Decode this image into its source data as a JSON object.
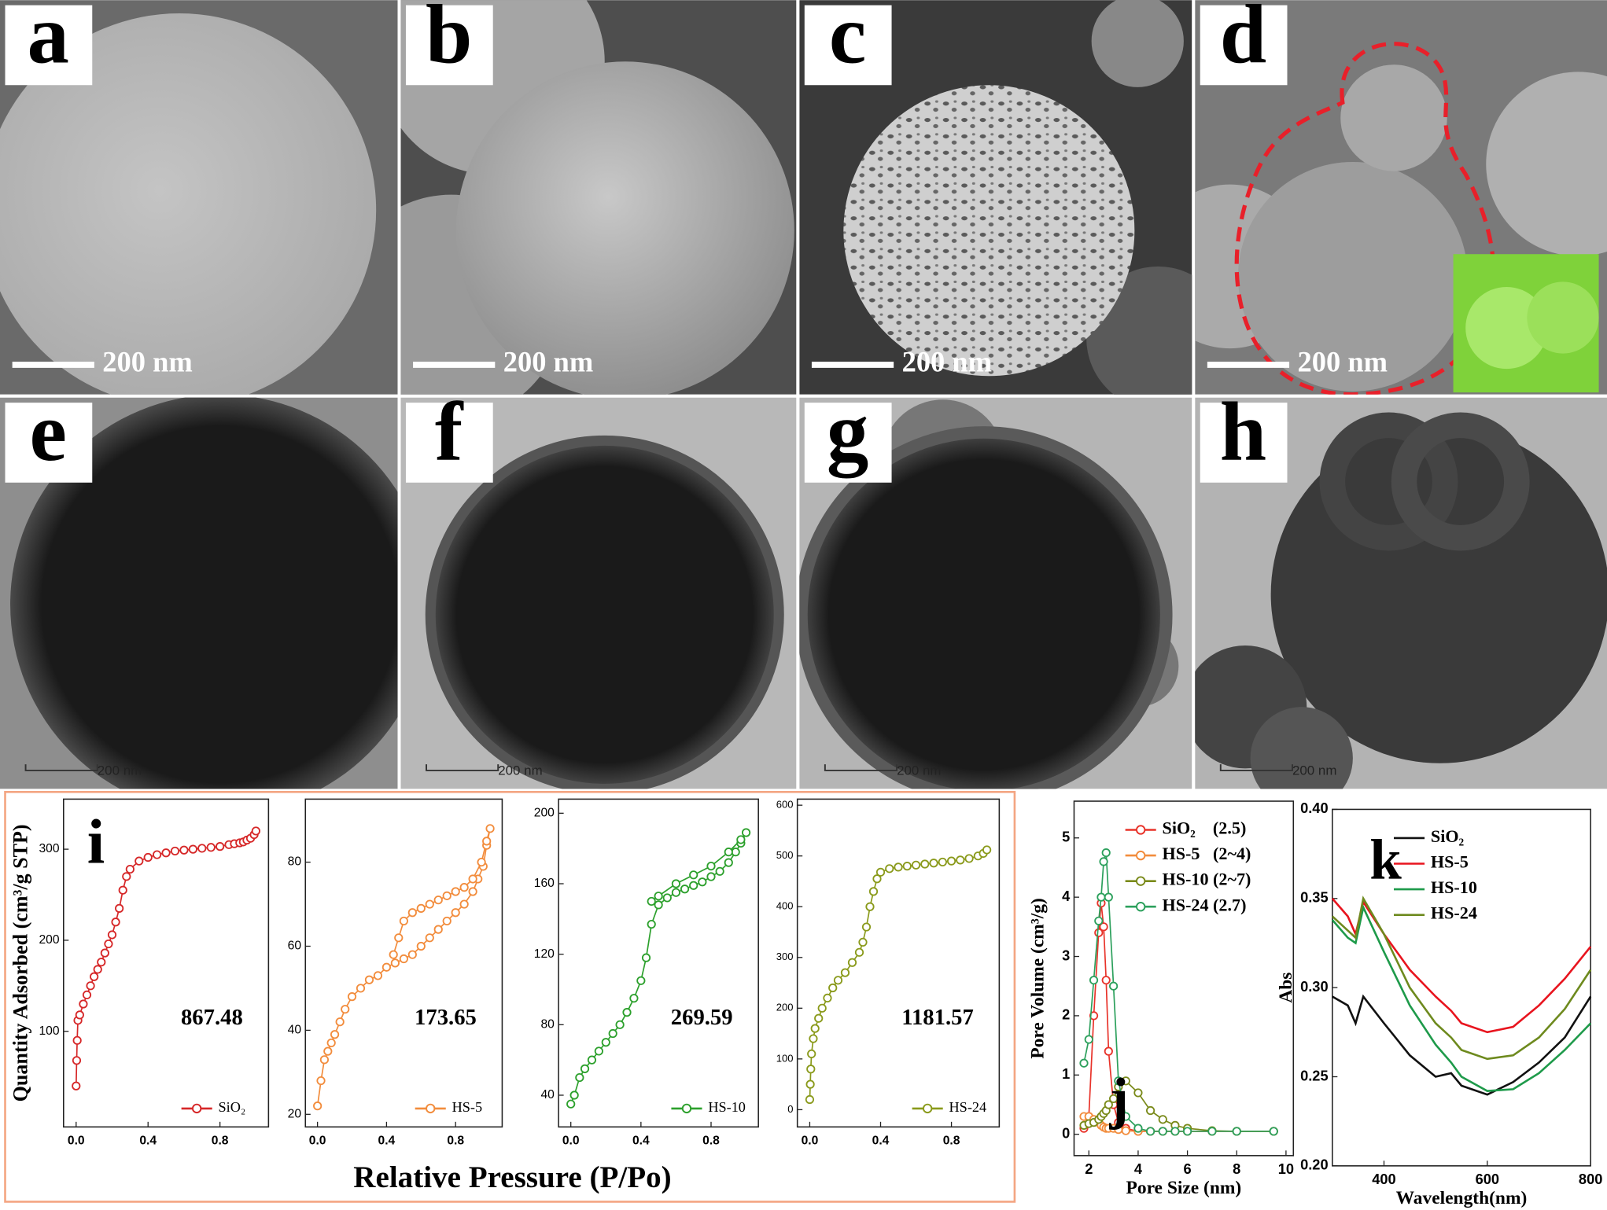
{
  "micrographs": [
    {
      "label": "a",
      "scale_bar": "200 nm"
    },
    {
      "label": "b",
      "scale_bar": "200 nm"
    },
    {
      "label": "c",
      "scale_bar": "200 nm"
    },
    {
      "label": "d",
      "scale_bar": "200 nm"
    },
    {
      "label": "e",
      "scale_bar": "200 nm"
    },
    {
      "label": "f",
      "scale_bar": "200 nm"
    },
    {
      "label": "g",
      "scale_bar": "200 nm"
    },
    {
      "label": "h",
      "scale_bar": "200 nm"
    }
  ],
  "panel_i": {
    "label": "i",
    "xlabel": "Relative Pressure (P/Po)",
    "ylabel": "Quantity Adsorbed (cm³/g STP)"
  },
  "chart_data": [
    {
      "type": "line",
      "markers": true,
      "legend": "lower right",
      "annotation": "867.48",
      "xlim": [
        -0.07,
        1.07
      ],
      "ylim": [
        -5,
        355
      ],
      "xticks": [
        {
          "value": 0,
          "label": "0.0"
        },
        {
          "value": 0.4,
          "label": "0.4"
        },
        {
          "value": 0.8,
          "label": "0.8"
        }
      ],
      "yticks": [
        100,
        200,
        300
      ],
      "x": [
        0,
        0.003,
        0.006,
        0.01,
        0.02,
        0.04,
        0.06,
        0.08,
        0.1,
        0.12,
        0.14,
        0.16,
        0.18,
        0.2,
        0.22,
        0.24,
        0.26,
        0.28,
        0.3,
        0.35,
        0.4,
        0.45,
        0.5,
        0.55,
        0.6,
        0.65,
        0.7,
        0.75,
        0.8,
        0.85,
        0.88,
        0.91,
        0.93,
        0.95,
        0.97,
        0.99,
        1.0
      ],
      "series": [
        {
          "name": "SiO₂",
          "color": "#d62728",
          "values": [
            40,
            68,
            90,
            112,
            118,
            130,
            140,
            150,
            160,
            168,
            176,
            186,
            196,
            206,
            220,
            235,
            255,
            270,
            278,
            287,
            291,
            294,
            296,
            298,
            299,
            300,
            301,
            302,
            303,
            305,
            306,
            307,
            308,
            310,
            312,
            316,
            320
          ]
        }
      ]
    },
    {
      "type": "line",
      "markers": true,
      "legend": "lower right",
      "annotation": "173.65",
      "xlim": [
        -0.07,
        1.07
      ],
      "ylim": [
        17,
        95
      ],
      "xticks": [
        {
          "value": 0,
          "label": "0.0"
        },
        {
          "value": 0.4,
          "label": "0.4"
        },
        {
          "value": 0.8,
          "label": "0.8"
        }
      ],
      "yticks": [
        20,
        40,
        60,
        80
      ],
      "x": [
        0,
        0.02,
        0.04,
        0.06,
        0.08,
        0.1,
        0.13,
        0.16,
        0.2,
        0.25,
        0.3,
        0.35,
        0.4,
        0.45,
        0.5,
        0.55,
        0.6,
        0.65,
        0.7,
        0.75,
        0.8,
        0.85,
        0.9,
        0.93,
        0.96,
        0.98,
        1.0,
        0.98,
        0.95,
        0.9,
        0.85,
        0.8,
        0.75,
        0.7,
        0.65,
        0.6,
        0.55,
        0.5,
        0.47,
        0.44
      ],
      "series": [
        {
          "name": "HS-5",
          "color": "#f28c3c",
          "values": [
            22,
            28,
            33,
            35,
            37,
            39,
            42,
            45,
            48,
            50,
            52,
            53,
            55,
            56,
            57,
            58,
            60,
            62,
            64,
            66,
            68,
            70,
            73,
            76,
            79,
            84,
            88,
            85,
            80,
            76,
            74,
            73,
            72,
            71,
            70,
            69,
            68,
            66,
            62,
            58
          ]
        }
      ]
    },
    {
      "type": "line",
      "markers": true,
      "legend": "lower right",
      "annotation": "269.59",
      "xlim": [
        -0.07,
        1.07
      ],
      "ylim": [
        22,
        208
      ],
      "xticks": [
        {
          "value": 0,
          "label": "0.0"
        },
        {
          "value": 0.4,
          "label": "0.4"
        },
        {
          "value": 0.8,
          "label": "0.8"
        }
      ],
      "yticks": [
        40,
        80,
        120,
        160,
        200
      ],
      "x": [
        0,
        0.02,
        0.05,
        0.08,
        0.12,
        0.16,
        0.2,
        0.24,
        0.28,
        0.32,
        0.36,
        0.4,
        0.43,
        0.46,
        0.5,
        0.55,
        0.6,
        0.65,
        0.7,
        0.75,
        0.8,
        0.85,
        0.9,
        0.94,
        0.97,
        1.0,
        0.97,
        0.9,
        0.8,
        0.7,
        0.6,
        0.5,
        0.46
      ],
      "series": [
        {
          "name": "HS-10",
          "color": "#2ca02c",
          "values": [
            35,
            40,
            50,
            55,
            60,
            65,
            70,
            75,
            80,
            87,
            95,
            105,
            118,
            137,
            148,
            152,
            155,
            157,
            159,
            161,
            164,
            167,
            172,
            178,
            183,
            189,
            185,
            178,
            170,
            165,
            160,
            153,
            150
          ]
        }
      ]
    },
    {
      "type": "line",
      "markers": true,
      "legend": "lower right",
      "annotation": "1181.57",
      "xlim": [
        -0.07,
        1.07
      ],
      "ylim": [
        -34,
        612
      ],
      "xticks": [
        {
          "value": 0,
          "label": "0.0"
        },
        {
          "value": 0.4,
          "label": "0.4"
        },
        {
          "value": 0.8,
          "label": "0.8"
        }
      ],
      "yticks": [
        0,
        100,
        200,
        300,
        400,
        500,
        600
      ],
      "x": [
        0,
        0.003,
        0.006,
        0.01,
        0.02,
        0.03,
        0.05,
        0.07,
        0.1,
        0.13,
        0.16,
        0.2,
        0.24,
        0.28,
        0.3,
        0.32,
        0.34,
        0.36,
        0.38,
        0.4,
        0.45,
        0.5,
        0.55,
        0.6,
        0.65,
        0.7,
        0.75,
        0.8,
        0.85,
        0.9,
        0.95,
        0.98,
        1.0
      ],
      "series": [
        {
          "name": "HS-24",
          "color": "#8a9a1b",
          "values": [
            20,
            50,
            80,
            110,
            140,
            160,
            180,
            200,
            220,
            240,
            255,
            270,
            290,
            310,
            330,
            360,
            400,
            430,
            455,
            468,
            475,
            478,
            480,
            482,
            484,
            486,
            488,
            490,
            492,
            495,
            500,
            505,
            512
          ]
        }
      ]
    },
    {
      "type": "line",
      "markers": true,
      "legend": "upper right",
      "label": "j",
      "xlabel": "Pore Size (nm)",
      "ylabel": "Pore Volume (cm³/g)",
      "xlim": [
        1.4,
        10.3
      ],
      "ylim": [
        -0.36,
        5.62
      ],
      "xticks": [
        2,
        4,
        6,
        8,
        10
      ],
      "yticks": [
        0,
        1,
        2,
        3,
        4,
        5
      ],
      "x": [
        1.8,
        2.0,
        2.2,
        2.4,
        2.5,
        2.6,
        2.7,
        2.8,
        3.0,
        3.2,
        3.5,
        4.0,
        4.5,
        5.0,
        5.5,
        6.0,
        7.0,
        8.0,
        9.5
      ],
      "series": [
        {
          "name": "SiO₂    (2.5)",
          "color": "#e8332a",
          "values": [
            0.1,
            0.3,
            2.0,
            3.4,
            3.9,
            3.5,
            2.6,
            1.4,
            0.5,
            0.2,
            0.1,
            0.05,
            0.05,
            0.05,
            0.05,
            0.05,
            0.05,
            0.05,
            0.05
          ]
        },
        {
          "name": "HS-5   (2~4)",
          "color": "#f28c3c",
          "values": [
            0.3,
            0.3,
            0.25,
            0.2,
            0.15,
            0.12,
            0.1,
            0.1,
            0.1,
            0.08,
            0.06,
            0.05,
            0.05,
            0.05,
            0.05,
            0.05,
            0.05,
            0.05,
            0.05
          ]
        },
        {
          "name": "HS-10 (2~7)",
          "color": "#7a8a1a",
          "values": [
            0.15,
            0.18,
            0.2,
            0.25,
            0.3,
            0.35,
            0.4,
            0.5,
            0.6,
            0.8,
            0.9,
            0.7,
            0.4,
            0.25,
            0.15,
            0.1,
            0.06,
            0.05,
            0.05
          ]
        },
        {
          "name": "HS-24 (2.7)",
          "color": "#2ca05c",
          "values": [
            1.2,
            1.6,
            2.6,
            3.6,
            4.0,
            4.6,
            4.75,
            4.0,
            2.5,
            0.9,
            0.3,
            0.1,
            0.05,
            0.05,
            0.05,
            0.05,
            0.05,
            0.05,
            0.05
          ]
        }
      ]
    },
    {
      "type": "line",
      "markers": false,
      "legend": "upper right",
      "label": "k",
      "xlabel": "Wavelength(nm)",
      "ylabel": "Abs",
      "xlim": [
        300,
        800
      ],
      "ylim": [
        0.2,
        0.4
      ],
      "xticks": [
        400,
        600,
        800
      ],
      "yticks": [
        {
          "value": 0.2,
          "label": "0.20"
        },
        0.25,
        {
          "value": 0.3,
          "label": "0.30"
        },
        0.35,
        {
          "value": 0.4,
          "label": "0.40"
        }
      ],
      "x": [
        300,
        330,
        345,
        360,
        400,
        450,
        500,
        530,
        550,
        600,
        650,
        700,
        750,
        800
      ],
      "series": [
        {
          "name": "SiO₂",
          "color": "#111111",
          "values": [
            0.295,
            0.29,
            0.28,
            0.295,
            0.28,
            0.262,
            0.25,
            0.252,
            0.245,
            0.24,
            0.247,
            0.258,
            0.272,
            0.295
          ]
        },
        {
          "name": "HS-5",
          "color": "#e8141e",
          "values": [
            0.35,
            0.34,
            0.33,
            0.348,
            0.33,
            0.31,
            0.295,
            0.287,
            0.28,
            0.275,
            0.278,
            0.29,
            0.305,
            0.323
          ]
        },
        {
          "name": "HS-10",
          "color": "#1e9a4a",
          "values": [
            0.338,
            0.328,
            0.325,
            0.345,
            0.32,
            0.29,
            0.268,
            0.258,
            0.25,
            0.242,
            0.243,
            0.252,
            0.265,
            0.28
          ]
        },
        {
          "name": "HS-24",
          "color": "#6e8a1e",
          "values": [
            0.34,
            0.332,
            0.328,
            0.35,
            0.33,
            0.3,
            0.28,
            0.272,
            0.265,
            0.26,
            0.262,
            0.272,
            0.288,
            0.31
          ]
        }
      ]
    }
  ]
}
